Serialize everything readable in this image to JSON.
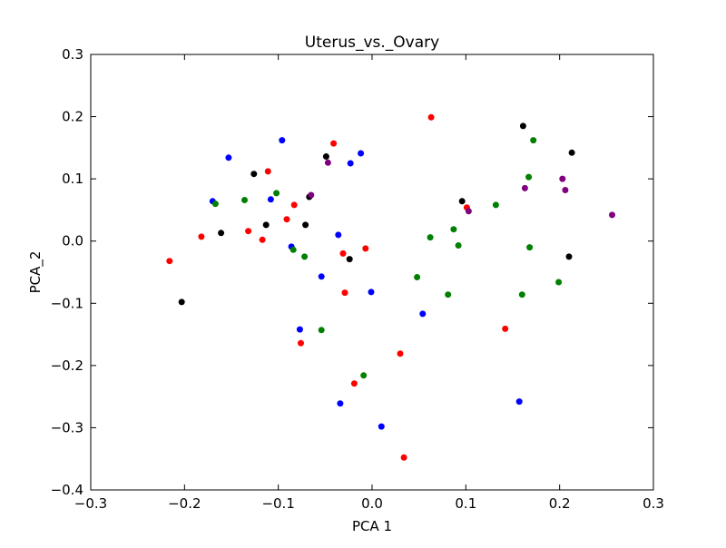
{
  "chart_data": {
    "type": "scatter",
    "title": "Uterus_vs._Ovary",
    "xlabel": "PCA 1",
    "ylabel": "PCA_2",
    "xlim": [
      -0.3,
      0.3
    ],
    "ylim": [
      -0.4,
      0.3
    ],
    "xticks": [
      -0.3,
      -0.2,
      -0.1,
      0.0,
      0.1,
      0.2,
      0.3
    ],
    "yticks": [
      -0.4,
      -0.3,
      -0.2,
      -0.1,
      0.0,
      0.1,
      0.2,
      0.3
    ],
    "xtick_labels": [
      "−0.3",
      "−0.2",
      "−0.1",
      "0.0",
      "0.1",
      "0.2",
      "0.3"
    ],
    "ytick_labels": [
      "−0.4",
      "−0.3",
      "−0.2",
      "−0.1",
      "0.0",
      "0.1",
      "0.2",
      "0.3"
    ],
    "grid": false,
    "series": [
      {
        "color": "#0000ff",
        "points": [
          [
            -0.17,
            0.064
          ],
          [
            -0.153,
            0.134
          ],
          [
            -0.108,
            0.067
          ],
          [
            -0.096,
            0.162
          ],
          [
            -0.086,
            -0.009
          ],
          [
            -0.077,
            -0.142
          ],
          [
            -0.054,
            -0.057
          ],
          [
            -0.036,
            0.01
          ],
          [
            -0.034,
            -0.261
          ],
          [
            -0.023,
            0.125
          ],
          [
            -0.012,
            0.141
          ],
          [
            -0.001,
            -0.082
          ],
          [
            0.01,
            -0.298
          ],
          [
            0.054,
            -0.117
          ],
          [
            0.157,
            -0.258
          ]
        ]
      },
      {
        "color": "#ff0000",
        "points": [
          [
            -0.216,
            -0.032
          ],
          [
            -0.182,
            0.007
          ],
          [
            -0.132,
            0.016
          ],
          [
            -0.117,
            0.002
          ],
          [
            -0.111,
            0.112
          ],
          [
            -0.091,
            0.035
          ],
          [
            -0.083,
            0.058
          ],
          [
            -0.076,
            -0.164
          ],
          [
            -0.041,
            0.157
          ],
          [
            -0.031,
            -0.02
          ],
          [
            -0.029,
            -0.083
          ],
          [
            -0.019,
            -0.229
          ],
          [
            -0.007,
            -0.012
          ],
          [
            0.03,
            -0.181
          ],
          [
            0.034,
            -0.348
          ],
          [
            0.063,
            0.199
          ],
          [
            0.101,
            0.054
          ],
          [
            0.142,
            -0.141
          ]
        ]
      },
      {
        "color": "#008000",
        "points": [
          [
            -0.167,
            0.06
          ],
          [
            -0.136,
            0.066
          ],
          [
            -0.102,
            0.077
          ],
          [
            -0.084,
            -0.014
          ],
          [
            -0.072,
            -0.025
          ],
          [
            -0.054,
            -0.143
          ],
          [
            -0.009,
            -0.216
          ],
          [
            0.048,
            -0.058
          ],
          [
            0.062,
            0.006
          ],
          [
            0.081,
            -0.086
          ],
          [
            0.087,
            0.019
          ],
          [
            0.092,
            -0.007
          ],
          [
            0.132,
            0.058
          ],
          [
            0.16,
            -0.086
          ],
          [
            0.167,
            0.103
          ],
          [
            0.168,
            -0.01
          ],
          [
            0.172,
            0.162
          ],
          [
            0.199,
            -0.066
          ]
        ]
      },
      {
        "color": "#000000",
        "points": [
          [
            -0.203,
            -0.098
          ],
          [
            -0.161,
            0.013
          ],
          [
            -0.126,
            0.108
          ],
          [
            -0.113,
            0.026
          ],
          [
            -0.071,
            0.026
          ],
          [
            -0.067,
            0.071
          ],
          [
            -0.049,
            0.136
          ],
          [
            -0.024,
            -0.029
          ],
          [
            0.096,
            0.064
          ],
          [
            0.161,
            0.185
          ],
          [
            0.21,
            -0.025
          ],
          [
            0.213,
            0.142
          ]
        ]
      },
      {
        "color": "#800080",
        "points": [
          [
            -0.065,
            0.074
          ],
          [
            -0.047,
            0.126
          ],
          [
            0.103,
            0.048
          ],
          [
            0.163,
            0.085
          ],
          [
            0.203,
            0.1
          ],
          [
            0.206,
            0.082
          ],
          [
            0.256,
            0.042
          ]
        ]
      }
    ]
  }
}
